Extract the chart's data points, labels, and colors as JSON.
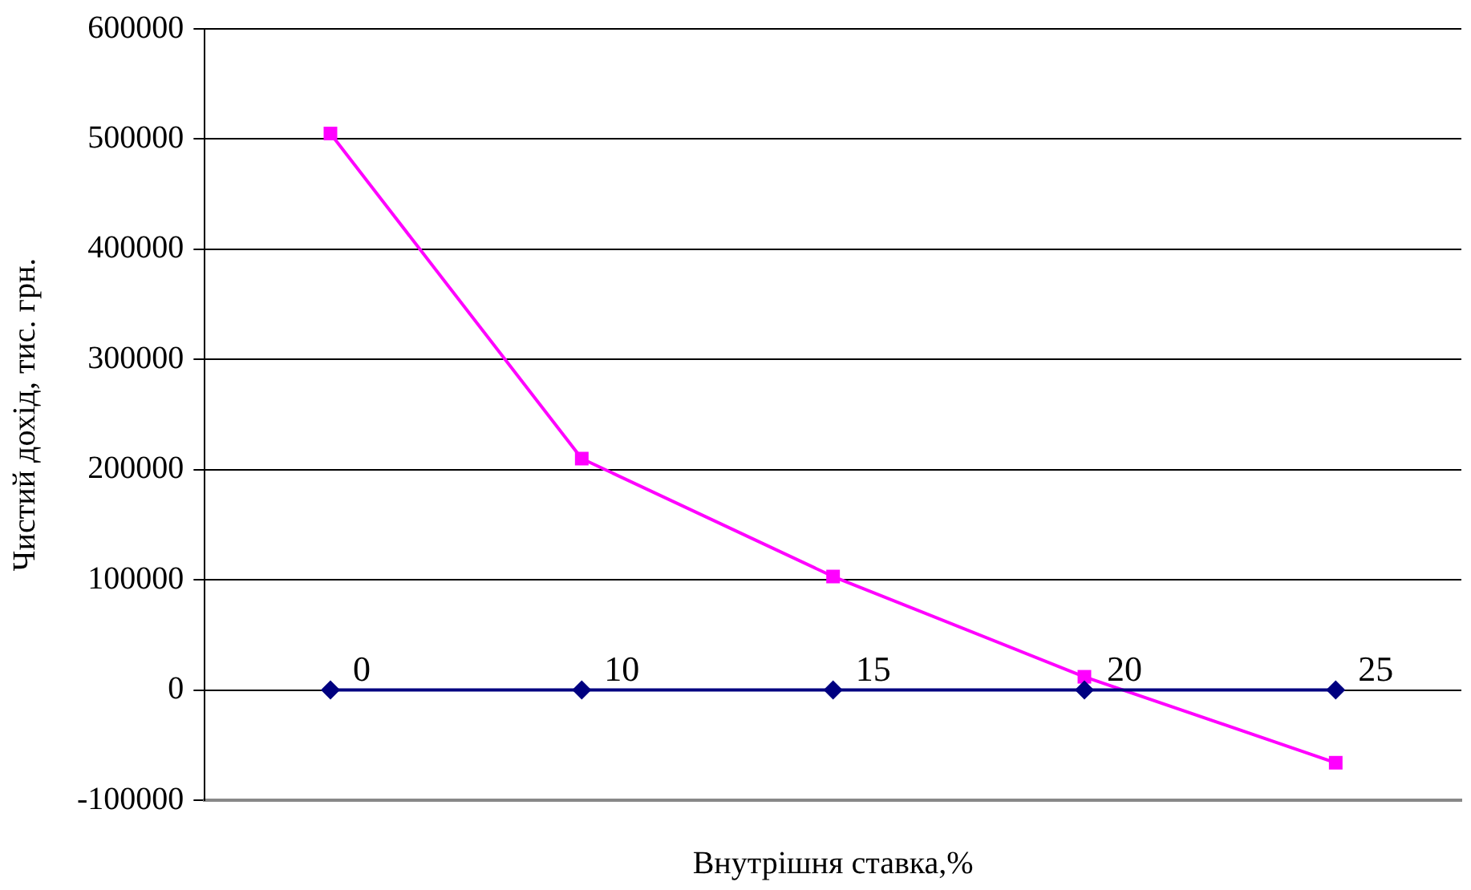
{
  "chart_data": {
    "type": "line",
    "xlabel": "Внутрішня ставка,%",
    "ylabel": "Чистий дохід, тис. грн.",
    "categories": [
      "0",
      "10",
      "15",
      "20",
      "25"
    ],
    "series": [
      {
        "color": "#000080",
        "marker": "diamond",
        "values": [
          0,
          0,
          0,
          0,
          0
        ]
      },
      {
        "color": "#ff00ff",
        "marker": "square",
        "values": [
          505000,
          210000,
          103000,
          12000,
          -66000
        ]
      }
    ],
    "ylim": [
      -100000,
      600000
    ],
    "yticks": [
      -100000,
      0,
      100000,
      200000,
      300000,
      400000,
      500000,
      600000
    ],
    "grid": "y",
    "legend": false,
    "line_style": "solid"
  }
}
